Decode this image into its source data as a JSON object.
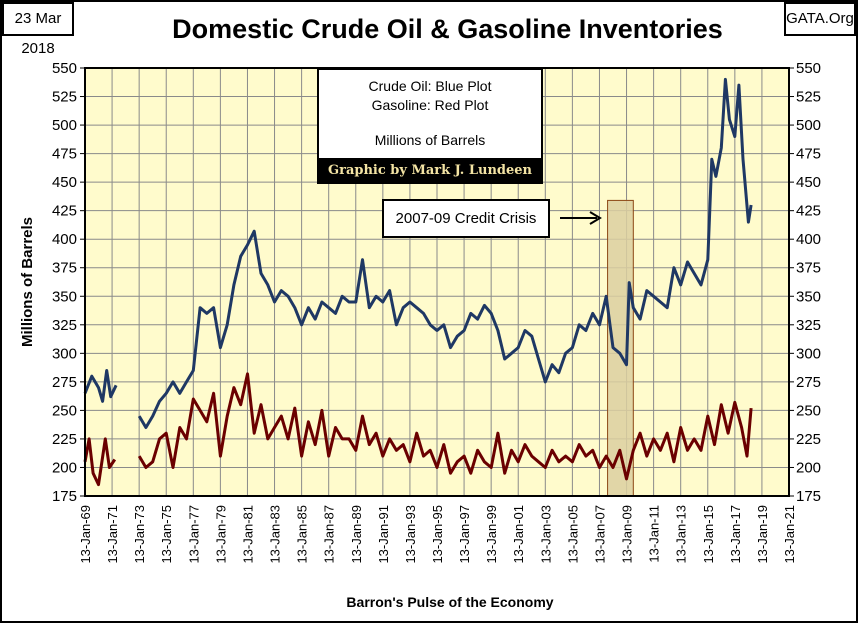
{
  "header": {
    "date": "23 Mar 2018",
    "site": "GATA.Org"
  },
  "legend": {
    "line1": "Crude Oil: Blue Plot",
    "line2": "Gasoline: Red Plot",
    "line3": "Millions of Barrels",
    "credit": "Graphic by Mark J. Lundeen"
  },
  "annotation": {
    "label": "2007-09 Credit Crisis",
    "period": [
      2007.6,
      2009.5
    ]
  },
  "colors": {
    "crude": "#1f3864",
    "gasoline": "#6b0000",
    "plot_bg": "#fffbcc",
    "crisis": "#dccfa0"
  },
  "chart_data": {
    "type": "line",
    "title": "Domestic Crude Oil & Gasoline Inventories",
    "xlabel": "Barron's Pulse of the Economy",
    "ylabel": "Millions of Barrels",
    "ylim": [
      175,
      550
    ],
    "xlim": [
      1969,
      2021
    ],
    "yticks": [
      "550",
      "525",
      "500",
      "475",
      "450",
      "425",
      "400",
      "375",
      "350",
      "325",
      "300",
      "275",
      "250",
      "225",
      "200",
      "175"
    ],
    "xticks": [
      "13-Jan-69",
      "13-Jan-71",
      "13-Jan-73",
      "13-Jan-75",
      "13-Jan-77",
      "13-Jan-79",
      "13-Jan-81",
      "13-Jan-83",
      "13-Jan-85",
      "13-Jan-87",
      "13-Jan-89",
      "13-Jan-91",
      "13-Jan-93",
      "13-Jan-95",
      "13-Jan-97",
      "13-Jan-99",
      "13-Jan-01",
      "13-Jan-03",
      "13-Jan-05",
      "13-Jan-07",
      "13-Jan-09",
      "13-Jan-11",
      "13-Jan-13",
      "13-Jan-15",
      "13-Jan-17",
      "13-Jan-19",
      "13-Jan-21"
    ],
    "grid": true,
    "series": [
      {
        "name": "Crude Oil",
        "segments": [
          [
            [
              1969,
              265
            ],
            [
              1969.5,
              280
            ],
            [
              1970,
              270
            ],
            [
              1970.3,
              258
            ],
            [
              1970.6,
              285
            ],
            [
              1970.9,
              262
            ],
            [
              1971.3,
              272
            ]
          ],
          [
            [
              1973,
              245
            ],
            [
              1973.5,
              235
            ],
            [
              1974,
              245
            ],
            [
              1974.5,
              258
            ],
            [
              1975,
              265
            ],
            [
              1975.5,
              275
            ],
            [
              1976,
              265
            ],
            [
              1976.5,
              275
            ],
            [
              1977,
              285
            ],
            [
              1977.5,
              340
            ],
            [
              1978,
              335
            ],
            [
              1978.5,
              340
            ],
            [
              1979,
              305
            ],
            [
              1979.5,
              325
            ],
            [
              1980,
              360
            ],
            [
              1980.5,
              385
            ],
            [
              1981,
              395
            ],
            [
              1981.5,
              407
            ],
            [
              1982,
              370
            ],
            [
              1982.5,
              360
            ],
            [
              1983,
              345
            ],
            [
              1983.5,
              355
            ],
            [
              1984,
              350
            ],
            [
              1984.5,
              340
            ],
            [
              1985,
              325
            ],
            [
              1985.5,
              340
            ],
            [
              1986,
              330
            ],
            [
              1986.5,
              345
            ],
            [
              1987,
              340
            ],
            [
              1987.5,
              335
            ],
            [
              1988,
              350
            ],
            [
              1988.5,
              345
            ],
            [
              1989,
              345
            ],
            [
              1989.5,
              382
            ],
            [
              1990,
              340
            ],
            [
              1990.5,
              350
            ],
            [
              1991,
              345
            ],
            [
              1991.5,
              355
            ],
            [
              1992,
              325
            ],
            [
              1992.5,
              340
            ],
            [
              1993,
              345
            ],
            [
              1993.5,
              340
            ],
            [
              1994,
              335
            ],
            [
              1994.5,
              325
            ],
            [
              1995,
              320
            ],
            [
              1995.5,
              325
            ],
            [
              1996,
              305
            ],
            [
              1996.5,
              315
            ],
            [
              1997,
              320
            ],
            [
              1997.5,
              335
            ],
            [
              1998,
              330
            ],
            [
              1998.5,
              342
            ],
            [
              1999,
              335
            ],
            [
              1999.5,
              320
            ],
            [
              2000,
              295
            ],
            [
              2000.5,
              300
            ],
            [
              2001,
              305
            ],
            [
              2001.5,
              320
            ],
            [
              2002,
              315
            ],
            [
              2002.5,
              295
            ],
            [
              2003,
              275
            ],
            [
              2003.5,
              290
            ],
            [
              2004,
              283
            ],
            [
              2004.5,
              300
            ],
            [
              2005,
              305
            ],
            [
              2005.5,
              325
            ],
            [
              2006,
              320
            ],
            [
              2006.5,
              335
            ],
            [
              2007,
              325
            ],
            [
              2007.5,
              350
            ],
            [
              2008,
              305
            ],
            [
              2008.5,
              300
            ],
            [
              2009,
              290
            ],
            [
              2009.2,
              362
            ],
            [
              2009.5,
              340
            ],
            [
              2010,
              330
            ],
            [
              2010.5,
              355
            ],
            [
              2011,
              350
            ],
            [
              2011.5,
              345
            ],
            [
              2012,
              340
            ],
            [
              2012.5,
              375
            ],
            [
              2013,
              360
            ],
            [
              2013.5,
              380
            ],
            [
              2014,
              370
            ],
            [
              2014.5,
              360
            ],
            [
              2015,
              382
            ],
            [
              2015.3,
              470
            ],
            [
              2015.6,
              455
            ],
            [
              2016,
              480
            ],
            [
              2016.3,
              540
            ],
            [
              2016.6,
              505
            ],
            [
              2017,
              490
            ],
            [
              2017.3,
              535
            ],
            [
              2017.6,
              470
            ],
            [
              2018,
              415
            ],
            [
              2018.2,
              430
            ]
          ]
        ]
      },
      {
        "name": "Gasoline",
        "segments": [
          [
            [
              1969,
              205
            ],
            [
              1969.3,
              225
            ],
            [
              1969.6,
              195
            ],
            [
              1970,
              185
            ],
            [
              1970.5,
              225
            ],
            [
              1970.8,
              200
            ],
            [
              1971.2,
              207
            ]
          ],
          [
            [
              1973,
              210
            ],
            [
              1973.5,
              200
            ],
            [
              1974,
              205
            ],
            [
              1974.5,
              225
            ],
            [
              1975,
              230
            ],
            [
              1975.5,
              200
            ],
            [
              1976,
              235
            ],
            [
              1976.5,
              225
            ],
            [
              1977,
              260
            ],
            [
              1977.5,
              250
            ],
            [
              1978,
              240
            ],
            [
              1978.5,
              265
            ],
            [
              1979,
              210
            ],
            [
              1979.5,
              245
            ],
            [
              1980,
              270
            ],
            [
              1980.5,
              255
            ],
            [
              1981,
              282
            ],
            [
              1981.5,
              230
            ],
            [
              1982,
              255
            ],
            [
              1982.5,
              225
            ],
            [
              1983,
              235
            ],
            [
              1983.5,
              245
            ],
            [
              1984,
              225
            ],
            [
              1984.5,
              252
            ],
            [
              1985,
              210
            ],
            [
              1985.5,
              240
            ],
            [
              1986,
              220
            ],
            [
              1986.5,
              250
            ],
            [
              1987,
              210
            ],
            [
              1987.5,
              235
            ],
            [
              1988,
              225
            ],
            [
              1988.5,
              225
            ],
            [
              1989,
              215
            ],
            [
              1989.5,
              245
            ],
            [
              1990,
              220
            ],
            [
              1990.5,
              230
            ],
            [
              1991,
              210
            ],
            [
              1991.5,
              225
            ],
            [
              1992,
              215
            ],
            [
              1992.5,
              220
            ],
            [
              1993,
              205
            ],
            [
              1993.5,
              230
            ],
            [
              1994,
              210
            ],
            [
              1994.5,
              215
            ],
            [
              1995,
              200
            ],
            [
              1995.5,
              220
            ],
            [
              1996,
              195
            ],
            [
              1996.5,
              205
            ],
            [
              1997,
              210
            ],
            [
              1997.5,
              195
            ],
            [
              1998,
              215
            ],
            [
              1998.5,
              205
            ],
            [
              1999,
              200
            ],
            [
              1999.5,
              230
            ],
            [
              2000,
              195
            ],
            [
              2000.5,
              215
            ],
            [
              2001,
              205
            ],
            [
              2001.5,
              220
            ],
            [
              2002,
              210
            ],
            [
              2002.5,
              205
            ],
            [
              2003,
              200
            ],
            [
              2003.5,
              215
            ],
            [
              2004,
              205
            ],
            [
              2004.5,
              210
            ],
            [
              2005,
              205
            ],
            [
              2005.5,
              220
            ],
            [
              2006,
              210
            ],
            [
              2006.5,
              215
            ],
            [
              2007,
              200
            ],
            [
              2007.5,
              210
            ],
            [
              2008,
              200
            ],
            [
              2008.5,
              215
            ],
            [
              2009,
              190
            ],
            [
              2009.5,
              215
            ],
            [
              2010,
              230
            ],
            [
              2010.5,
              210
            ],
            [
              2011,
              225
            ],
            [
              2011.5,
              215
            ],
            [
              2012,
              230
            ],
            [
              2012.5,
              205
            ],
            [
              2013,
              235
            ],
            [
              2013.5,
              215
            ],
            [
              2014,
              225
            ],
            [
              2014.5,
              215
            ],
            [
              2015,
              245
            ],
            [
              2015.5,
              220
            ],
            [
              2016,
              255
            ],
            [
              2016.5,
              230
            ],
            [
              2017,
              257
            ],
            [
              2017.5,
              235
            ],
            [
              2017.9,
              210
            ],
            [
              2018.2,
              252
            ]
          ]
        ]
      }
    ]
  }
}
